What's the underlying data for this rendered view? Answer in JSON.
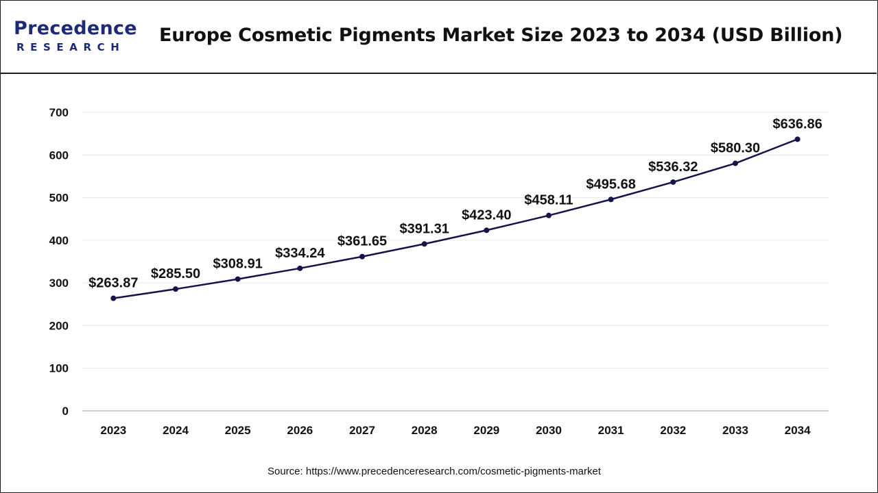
{
  "header": {
    "logo_main": "Precedence",
    "logo_sub": "RESEARCH",
    "title": "Europe Cosmetic Pigments Market Size 2023 to 2034 (USD Billion)"
  },
  "footer": {
    "source": "Source: https://www.precedenceresearch.com/cosmetic-pigments-market"
  },
  "colors": {
    "line": "#14134a",
    "grid": "#e6e6e6",
    "axis": "#bfbfbf",
    "brand": "#1e2a78"
  },
  "chart_data": {
    "type": "line",
    "title": "Europe Cosmetic Pigments Market Size 2023 to 2034 (USD Billion)",
    "xlabel": "",
    "ylabel": "",
    "categories": [
      "2023",
      "2024",
      "2025",
      "2026",
      "2027",
      "2028",
      "2029",
      "2030",
      "2031",
      "2032",
      "2033",
      "2034"
    ],
    "series": [
      {
        "values": [
          263.87,
          285.5,
          308.91,
          334.24,
          361.65,
          391.31,
          423.4,
          458.11,
          495.68,
          536.32,
          580.3,
          636.86
        ],
        "labels": [
          "$263.87",
          "$285.50",
          "$308.91",
          "$334.24",
          "$361.65",
          "$391.31",
          "$423.40",
          "$458.11",
          "$495.68",
          "$536.32",
          "$580.30",
          "$636.86"
        ]
      }
    ],
    "ylim": [
      0,
      700
    ],
    "yticks": [
      0,
      100,
      200,
      300,
      400,
      500,
      600,
      700
    ],
    "grid": true,
    "legend": "none"
  }
}
